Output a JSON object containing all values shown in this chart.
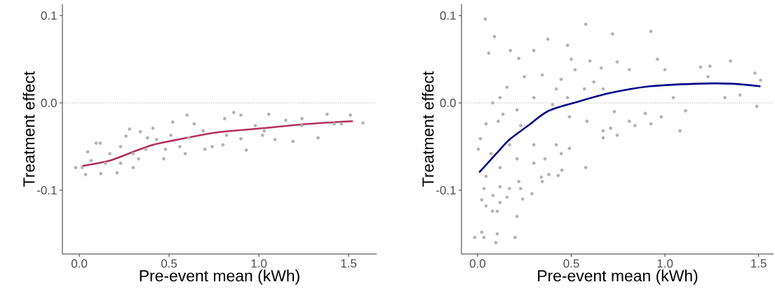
{
  "chart_data": [
    {
      "type": "scatter",
      "xlabel": "Pre-event mean (kWh)",
      "ylabel": "Treatment effect",
      "xlim": [
        -0.094,
        1.656
      ],
      "ylim": [
        -0.173,
        0.113
      ],
      "xticks": [
        {
          "value": 0,
          "label": "0.0"
        },
        {
          "value": 0.5,
          "label": "0.5"
        },
        {
          "value": 1,
          "label": "1.0"
        },
        {
          "value": 1.5,
          "label": "1.5"
        }
      ],
      "yticks": [
        {
          "value": -0.1,
          "label": "-0.1"
        },
        {
          "value": 0,
          "label": "0.0"
        },
        {
          "value": 0.1,
          "label": "0.1"
        }
      ],
      "ref_lines": [
        {
          "axis": "y",
          "value": 0,
          "color": "#808080",
          "line_style": "dotted"
        }
      ],
      "series": [
        {
          "color": "#b3b3b3",
          "marker": "circle",
          "x": [
            -0.02,
            0.035,
            0.094,
            0.117,
            0.047,
            0.28,
            0.26,
            0.34,
            0.41,
            0.52,
            0.6,
            0.86,
            0.9,
            1.055,
            1.38,
            1.51,
            1.58,
            1.33,
            1.19,
            0.93,
            1.09,
            1.24,
            1.46,
            1.15,
            0.81,
            0.74,
            0.7,
            0.59,
            0.47,
            0.3,
            0.21,
            0.12,
            0.17,
            0.23,
            0.43,
            0.64,
            0.69,
            1.02,
            1.03,
            0.98,
            0.82,
            0.8,
            0.56,
            0.37,
            0.33,
            0.066,
            0.016,
            0.51,
            0.61,
            0.48,
            0.145,
            0.23,
            0.3,
            0.38,
            0.9,
            1.24,
            1.42
          ],
          "values": [
            -0.074,
            -0.082,
            -0.046,
            -0.046,
            -0.056,
            -0.03,
            -0.038,
            -0.033,
            -0.029,
            -0.022,
            -0.014,
            -0.011,
            -0.014,
            -0.013,
            -0.013,
            -0.014,
            -0.023,
            -0.04,
            -0.044,
            -0.054,
            -0.042,
            -0.018,
            -0.024,
            -0.02,
            -0.018,
            -0.05,
            -0.053,
            -0.058,
            -0.064,
            -0.074,
            -0.08,
            -0.081,
            -0.058,
            -0.05,
            -0.042,
            -0.024,
            -0.032,
            -0.037,
            -0.032,
            -0.026,
            -0.037,
            -0.048,
            -0.05,
            -0.053,
            -0.064,
            -0.066,
            -0.074,
            -0.037,
            -0.04,
            -0.053,
            -0.069,
            -0.069,
            -0.058,
            -0.04,
            -0.041,
            -0.026,
            -0.024
          ]
        },
        {
          "type": "line",
          "color": "#b5305a",
          "line_style": "solid",
          "x": [
            0.02,
            0.17,
            0.3,
            0.41,
            0.5,
            0.76,
            1.02,
            1.28,
            1.52
          ],
          "values": [
            -0.072,
            -0.066,
            -0.056,
            -0.048,
            -0.044,
            -0.034,
            -0.029,
            -0.024,
            -0.021
          ]
        }
      ]
    },
    {
      "type": "scatter",
      "xlabel": "Pre-event mean (kWh)",
      "ylabel": "Treatment effect",
      "xlim": [
        -0.086,
        1.58
      ],
      "ylim": [
        -0.173,
        0.113
      ],
      "xticks": [
        {
          "value": 0,
          "label": "0.0"
        },
        {
          "value": 0.5,
          "label": "0.5"
        },
        {
          "value": 1,
          "label": "1.0"
        },
        {
          "value": 1.5,
          "label": "1.5"
        }
      ],
      "yticks": [
        {
          "value": -0.1,
          "label": "-0.1"
        },
        {
          "value": 0,
          "label": "0.0"
        },
        {
          "value": 0.1,
          "label": "0.1"
        }
      ],
      "ref_lines": [
        {
          "axis": "y",
          "value": 0,
          "color": "#808080",
          "line_style": "dotted"
        }
      ],
      "series": [
        {
          "color": "#b3b3b3",
          "marker": "circle",
          "x": [
            0.041,
            0.09,
            0.06,
            0.577,
            0.72,
            0.925,
            1.35,
            1.48,
            1.51,
            1.49,
            1.4,
            1.32,
            1.24,
            1.19,
            1.23,
            1.11,
            1.08,
            0.98,
            0.96,
            1.0,
            1.045,
            0.895,
            0.925,
            0.84,
            0.81,
            0.81,
            0.745,
            0.66,
            0.6,
            0.5,
            0.48,
            0.375,
            0.3,
            0.22,
            0.175,
            0.157,
            0.12,
            0.08,
            0.25,
            0.345,
            0.446,
            0.52,
            0.62,
            0.67,
            0.73,
            0.71,
            0.745,
            0.67,
            0.584,
            0.49,
            0.4,
            0.3,
            0.21,
            0.135,
            0.045,
            0.11,
            0.23,
            0.48,
            0.57,
            0.42,
            0.015,
            0.004,
            0.045,
            0.022,
            0.045,
            0.079,
            0.105,
            0.21,
            -0.015,
            0.022,
            0.034,
            0.097,
            0.105,
            0.2,
            0.29,
            0.24,
            0.157,
            0.12,
            0.082,
            0.17,
            0.23,
            0.345,
            0.34,
            0.43,
            0.38,
            0.45,
            0.577,
            0.12,
            0.22,
            0.12,
            0.21,
            0.3,
            0.36,
            0.446,
            0.49,
            0.67,
            0.071,
            0.034,
            0.17,
            0.3,
            0.42
          ],
          "values": [
            0.096,
            0.076,
            0.057,
            0.09,
            0.079,
            0.082,
            0.048,
            0.034,
            0.026,
            -0.004,
            0.009,
            0.006,
            0.042,
            0.041,
            0.03,
            -0.009,
            -0.032,
            -0.016,
            0.05,
            0.038,
            0.006,
            -0.012,
            -0.024,
            -0.026,
            -0.021,
            0.038,
            0.047,
            0.04,
            0.048,
            0.05,
            0.066,
            0.073,
            0.06,
            0.051,
            0.06,
            0.018,
            0.006,
            0.0,
            0.03,
            0.032,
            0.027,
            0.038,
            0.024,
            0.016,
            -0.01,
            -0.029,
            -0.037,
            -0.032,
            -0.021,
            -0.016,
            -0.002,
            0.006,
            -0.008,
            -0.013,
            -0.024,
            -0.021,
            -0.026,
            0.006,
            0.016,
            0.016,
            -0.041,
            -0.053,
            -0.084,
            -0.111,
            -0.118,
            -0.124,
            -0.124,
            -0.13,
            -0.154,
            -0.148,
            -0.154,
            -0.16,
            -0.15,
            -0.154,
            -0.104,
            -0.11,
            -0.108,
            -0.114,
            -0.106,
            -0.098,
            -0.098,
            -0.09,
            -0.085,
            -0.083,
            -0.082,
            -0.077,
            -0.074,
            -0.096,
            -0.09,
            -0.074,
            -0.064,
            -0.069,
            -0.064,
            -0.058,
            -0.052,
            -0.04,
            -0.058,
            -0.098,
            -0.048,
            -0.048,
            -0.048
          ]
        },
        {
          "type": "line",
          "color": "#00008b",
          "line_style": "solid",
          "x": [
            0.011,
            0.1,
            0.17,
            0.27,
            0.38,
            0.547,
            0.7,
            0.92,
            1.17,
            1.36,
            1.506
          ],
          "values": [
            -0.079,
            -0.058,
            -0.042,
            -0.026,
            -0.009,
            0.002,
            0.011,
            0.019,
            0.022,
            0.022,
            0.019
          ]
        }
      ]
    }
  ]
}
